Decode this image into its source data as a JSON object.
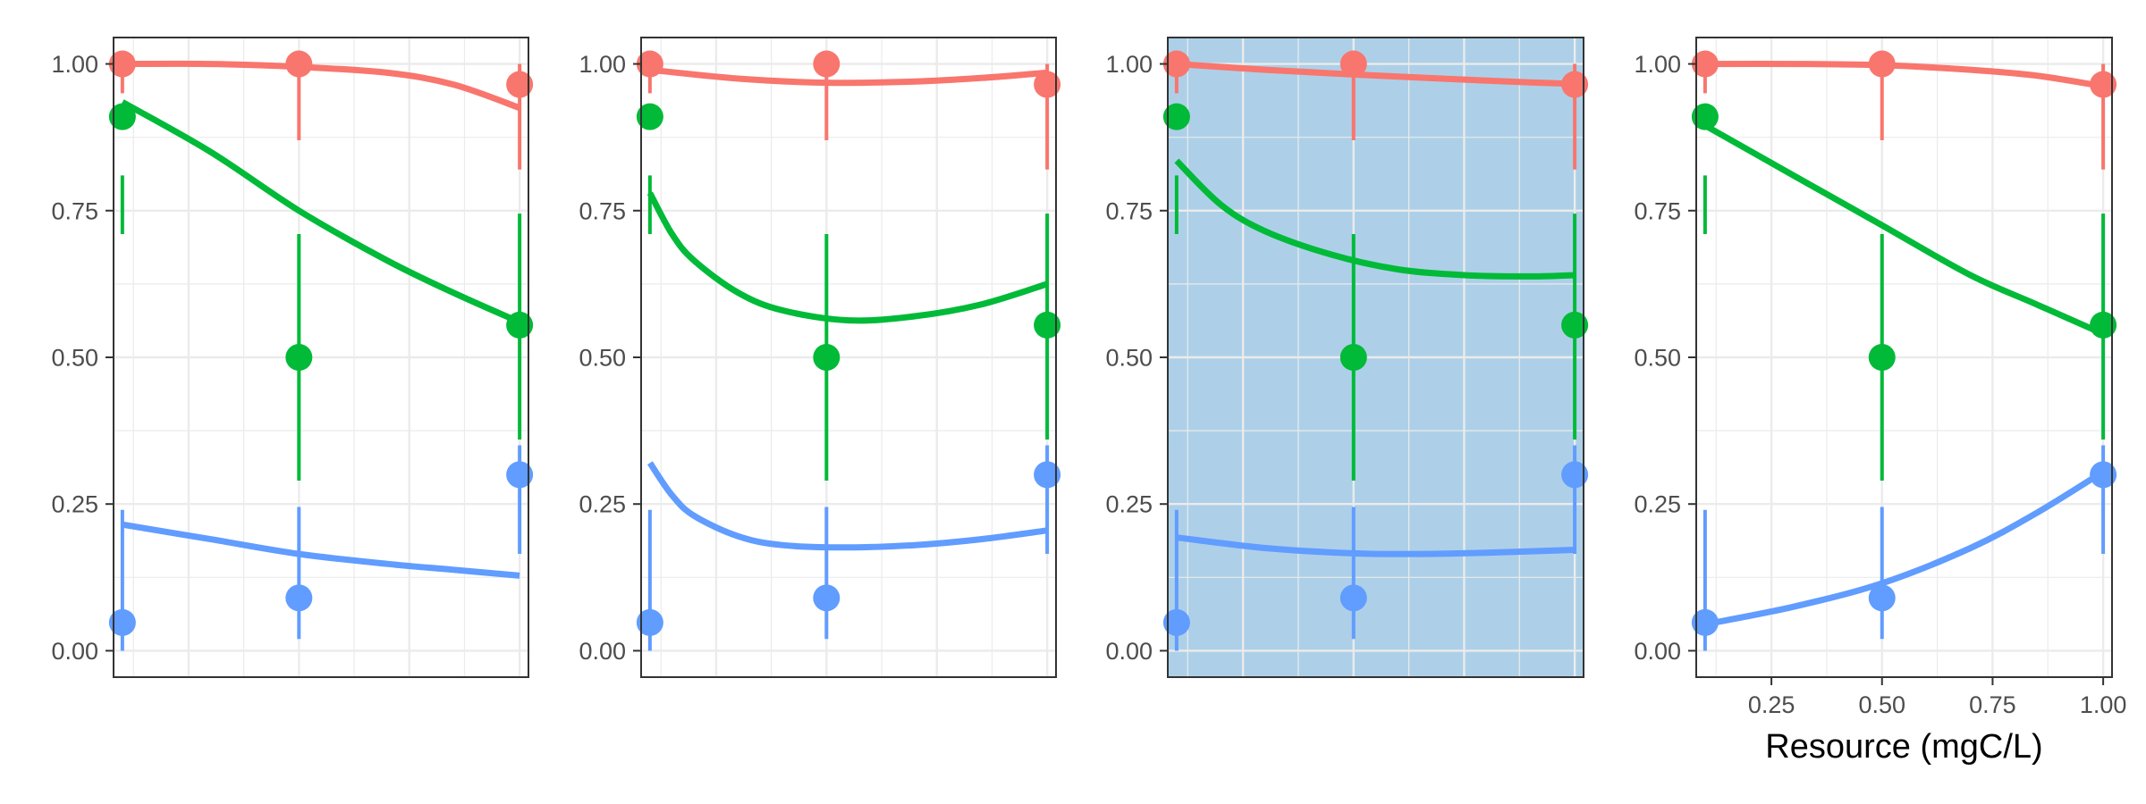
{
  "chart_data": {
    "type": "scatter",
    "xlabel": "Resource (mgC/L)",
    "ylabel": "",
    "title": "",
    "xlim": [
      0.08,
      1.02
    ],
    "ylim": [
      -0.045,
      1.045
    ],
    "y_ticks": [
      0.0,
      0.25,
      0.5,
      0.75,
      1.0
    ],
    "y_tick_labels": [
      "0.00",
      "0.25",
      "0.50",
      "0.75",
      "1.00"
    ],
    "x_ticks": [
      0.25,
      0.5,
      0.75,
      1.0
    ],
    "x_tick_labels": [
      "0.25",
      "0.50",
      "0.75",
      "1.00"
    ],
    "grid": true,
    "legend": "none",
    "colors": {
      "red": "#F8766D",
      "green": "#00BA38",
      "blue": "#619CFF",
      "highlight_bg": "#ADD0E8",
      "grid": "#EBEBEB",
      "grid_on_highlight": "#EBEBEB"
    },
    "points": [
      {
        "series": "red",
        "x": 0.1,
        "y": 1.0,
        "lo": 0.95,
        "hi": 1.0
      },
      {
        "series": "red",
        "x": 0.5,
        "y": 1.0,
        "lo": 0.87,
        "hi": 1.0
      },
      {
        "series": "red",
        "x": 1.0,
        "y": 0.965,
        "lo": 0.82,
        "hi": 1.0
      },
      {
        "series": "green",
        "x": 0.1,
        "y": 0.91,
        "lo": 0.71,
        "hi": 0.81
      },
      {
        "series": "green",
        "x": 0.5,
        "y": 0.5,
        "lo": 0.29,
        "hi": 0.71
      },
      {
        "series": "green",
        "x": 1.0,
        "y": 0.555,
        "lo": 0.36,
        "hi": 0.745
      },
      {
        "series": "blue",
        "x": 0.1,
        "y": 0.048,
        "lo": 0.0,
        "hi": 0.24
      },
      {
        "series": "blue",
        "x": 0.5,
        "y": 0.09,
        "lo": 0.02,
        "hi": 0.245
      },
      {
        "series": "blue",
        "x": 1.0,
        "y": 0.3,
        "lo": 0.165,
        "hi": 0.35
      }
    ],
    "panels": [
      {
        "highlight": false,
        "show_x_axis": false,
        "curves": [
          {
            "series": "red",
            "x": [
              0.1,
              0.3,
              0.5,
              0.7,
              0.85,
              1.0
            ],
            "y": [
              1.0,
              1.0,
              0.995,
              0.985,
              0.965,
              0.925
            ]
          },
          {
            "series": "green",
            "x": [
              0.1,
              0.3,
              0.5,
              0.7,
              0.85,
              1.0
            ],
            "y": [
              0.935,
              0.85,
              0.75,
              0.665,
              0.61,
              0.56
            ]
          },
          {
            "series": "blue",
            "x": [
              0.1,
              0.3,
              0.5,
              0.7,
              0.85,
              1.0
            ],
            "y": [
              0.215,
              0.19,
              0.165,
              0.148,
              0.138,
              0.128
            ]
          }
        ]
      },
      {
        "highlight": false,
        "show_x_axis": false,
        "curves": [
          {
            "series": "red",
            "x": [
              0.1,
              0.3,
              0.5,
              0.7,
              0.85,
              1.0
            ],
            "y": [
              0.99,
              0.975,
              0.968,
              0.97,
              0.976,
              0.985
            ]
          },
          {
            "series": "green",
            "x": [
              0.1,
              0.15,
              0.2,
              0.3,
              0.4,
              0.55,
              0.7,
              0.85,
              1.0
            ],
            "y": [
              0.78,
              0.71,
              0.665,
              0.61,
              0.58,
              0.563,
              0.57,
              0.59,
              0.625
            ]
          },
          {
            "series": "blue",
            "x": [
              0.1,
              0.15,
              0.2,
              0.3,
              0.4,
              0.55,
              0.7,
              0.85,
              1.0
            ],
            "y": [
              0.32,
              0.265,
              0.23,
              0.195,
              0.18,
              0.176,
              0.18,
              0.19,
              0.205
            ]
          }
        ]
      },
      {
        "highlight": true,
        "show_x_axis": false,
        "curves": [
          {
            "series": "red",
            "x": [
              0.1,
              0.3,
              0.5,
              0.7,
              0.85,
              1.0
            ],
            "y": [
              1.0,
              0.99,
              0.982,
              0.975,
              0.97,
              0.966
            ]
          },
          {
            "series": "green",
            "x": [
              0.1,
              0.2,
              0.3,
              0.45,
              0.6,
              0.75,
              0.9,
              1.0
            ],
            "y": [
              0.835,
              0.76,
              0.715,
              0.675,
              0.65,
              0.64,
              0.638,
              0.64
            ]
          },
          {
            "series": "blue",
            "x": [
              0.1,
              0.3,
              0.5,
              0.65,
              0.8,
              1.0
            ],
            "y": [
              0.193,
              0.175,
              0.166,
              0.165,
              0.167,
              0.172
            ]
          }
        ]
      },
      {
        "highlight": false,
        "show_x_axis": true,
        "curves": [
          {
            "series": "red",
            "x": [
              0.1,
              0.3,
              0.5,
              0.7,
              0.85,
              1.0
            ],
            "y": [
              1.0,
              1.0,
              0.998,
              0.99,
              0.98,
              0.962
            ]
          },
          {
            "series": "green",
            "x": [
              0.1,
              0.3,
              0.5,
              0.7,
              0.85,
              1.0
            ],
            "y": [
              0.895,
              0.81,
              0.725,
              0.64,
              0.59,
              0.54
            ]
          },
          {
            "series": "blue",
            "x": [
              0.1,
              0.3,
              0.5,
              0.7,
              0.85,
              1.0
            ],
            "y": [
              0.045,
              0.075,
              0.115,
              0.175,
              0.235,
              0.305
            ]
          }
        ]
      }
    ]
  }
}
